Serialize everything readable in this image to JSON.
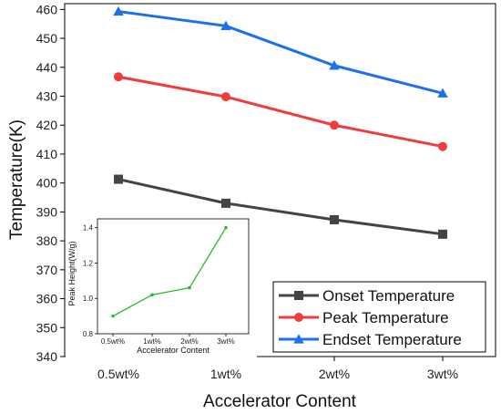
{
  "chart_data": [
    {
      "type": "line",
      "title": "",
      "xlabel": "Accelerator Content",
      "ylabel": "Temperature(K)",
      "categories": [
        "0.5wt%",
        "1wt%",
        "2wt%",
        "3wt%"
      ],
      "ylim": [
        340,
        462
      ],
      "yticks": [
        340,
        350,
        360,
        370,
        380,
        390,
        400,
        410,
        420,
        430,
        440,
        450,
        460
      ],
      "legend_position": "bottom-right",
      "grid": false,
      "series": [
        {
          "name": "Onset Temperature",
          "values": [
            401.3,
            393.0,
            387.3,
            382.3
          ],
          "color": "#444444",
          "marker": "square"
        },
        {
          "name": "Peak Temperature",
          "values": [
            436.7,
            429.8,
            420.0,
            412.6
          ],
          "color": "#f03c3c",
          "marker": "circle"
        },
        {
          "name": "Endset Temperature",
          "values": [
            459.3,
            454.3,
            440.6,
            431.0
          ],
          "color": "#1e6ff0",
          "marker": "triangle"
        }
      ]
    },
    {
      "type": "line",
      "title": "",
      "xlabel": "Accelerator Content",
      "ylabel": "Peak Height(W/g)",
      "categories": [
        "0.5wt%",
        "1wt%",
        "2wt%",
        "3wt%"
      ],
      "ylim": [
        0.8,
        1.45
      ],
      "yticks": [
        "0.8",
        "1.0",
        "1.2",
        "1.4"
      ],
      "grid": false,
      "series": [
        {
          "name": "",
          "values": [
            0.9,
            1.02,
            1.06,
            1.4
          ],
          "color": "#22bb22",
          "marker": "square"
        }
      ]
    }
  ]
}
